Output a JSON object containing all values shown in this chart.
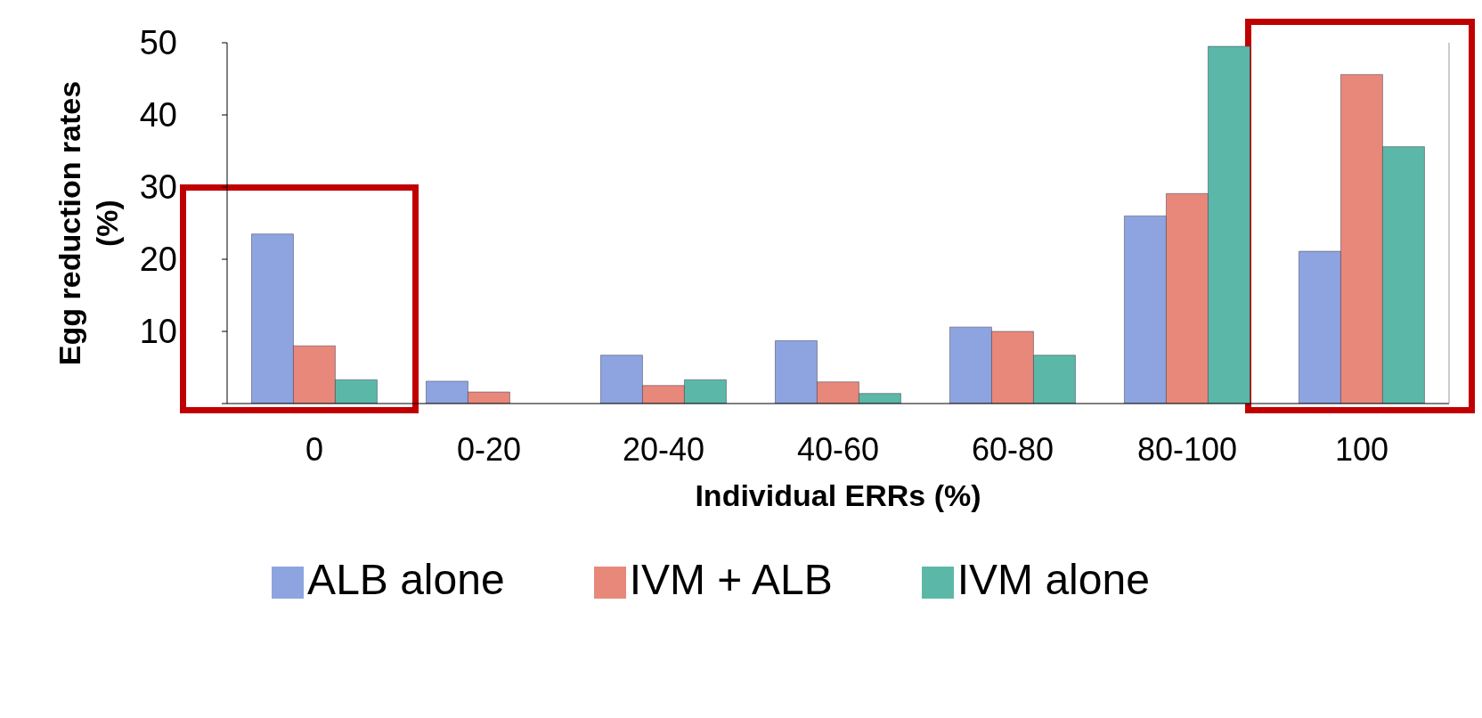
{
  "chart_data": {
    "type": "bar",
    "xlabel": "Individual ERRs (%)",
    "ylabel": "Egg reduction rates (%)",
    "categories": [
      "0",
      "0-20",
      "20-40",
      "40-60",
      "60-80",
      "80-100",
      "100"
    ],
    "series": [
      {
        "name": "ALB alone",
        "color": "#8ea4e0",
        "values": [
          23.5,
          3.1,
          6.7,
          8.7,
          10.6,
          26.0,
          21.1
        ]
      },
      {
        "name": "IVM + ALB",
        "color": "#e8887a",
        "values": [
          8.0,
          1.6,
          2.5,
          3.0,
          10.0,
          29.1,
          45.6
        ]
      },
      {
        "name": "IVM alone",
        "color": "#5bb8a8",
        "values": [
          3.3,
          0,
          3.3,
          1.4,
          6.7,
          49.5,
          35.6
        ]
      }
    ],
    "ylim": [
      0,
      50
    ],
    "yticks": [
      {
        "value": 0,
        "label": null
      },
      10,
      20,
      30,
      40,
      50
    ],
    "grid": false,
    "legend": "bottom"
  }
}
